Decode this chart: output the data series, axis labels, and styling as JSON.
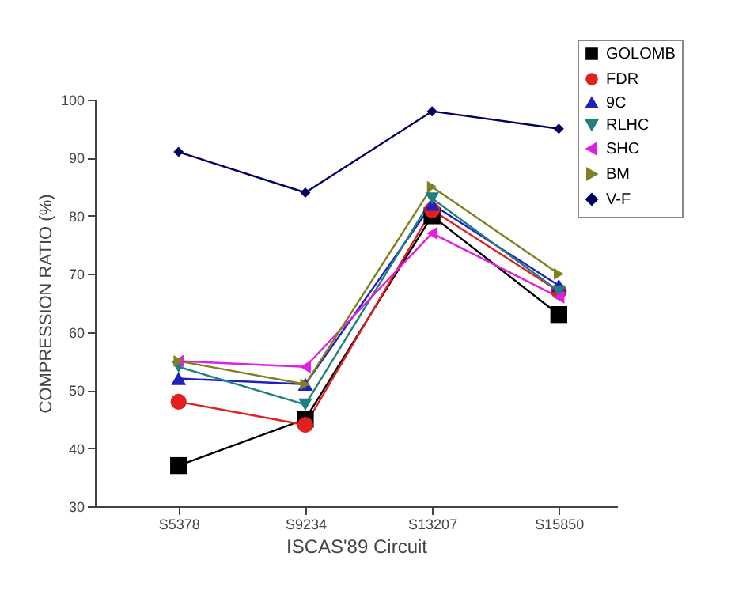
{
  "chart_data": {
    "type": "line",
    "xlabel": "ISCAS'89 Circuit",
    "ylabel": "COMPRESSION RATIO (%)",
    "categories": [
      "S5378",
      "S9234",
      "S13207",
      "S15850"
    ],
    "ylim": [
      30,
      100
    ],
    "yticks": [
      30,
      40,
      50,
      60,
      70,
      80,
      90,
      100
    ],
    "grid": false,
    "legend": "top right",
    "series": [
      {
        "name": "GOLOMB",
        "color": "#000000",
        "marker": "square",
        "values": [
          37,
          45,
          80,
          63
        ]
      },
      {
        "name": "FDR",
        "color": "#e02020",
        "marker": "circle",
        "values": [
          48,
          44,
          81,
          67
        ]
      },
      {
        "name": "9C",
        "color": "#2020c0",
        "marker": "triangle-up",
        "values": [
          52,
          51,
          82,
          68
        ]
      },
      {
        "name": "RLHC",
        "color": "#208080",
        "marker": "triangle-down",
        "values": [
          54,
          47.5,
          83,
          67
        ]
      },
      {
        "name": "SHC",
        "color": "#e020e0",
        "marker": "triangle-left",
        "values": [
          55,
          54,
          77,
          66
        ]
      },
      {
        "name": "BM",
        "color": "#808020",
        "marker": "triangle-right",
        "values": [
          55,
          51,
          85,
          70
        ]
      },
      {
        "name": "V-F",
        "color": "#000060",
        "marker": "diamond",
        "values": [
          91,
          84,
          98,
          95
        ]
      }
    ]
  }
}
